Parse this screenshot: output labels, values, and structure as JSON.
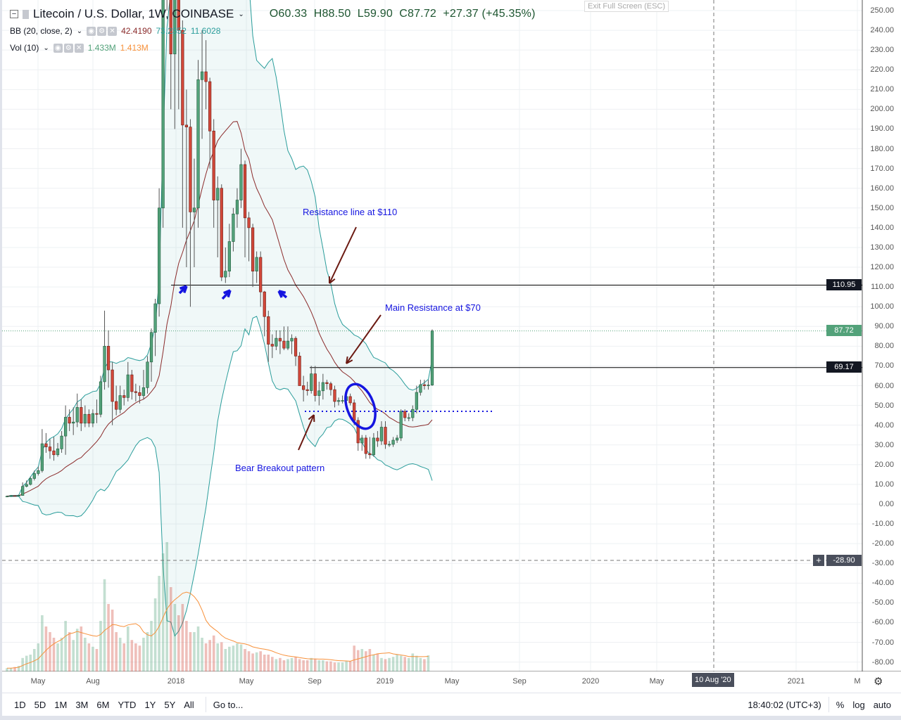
{
  "header": {
    "symbol": "Litecoin / U.S. Dollar, 1W, COINBASE",
    "open": "O60.33",
    "high": "H88.50",
    "low": "L59.90",
    "close": "C87.72",
    "change": "+27.37 (+45.35%)",
    "exit_fullscreen": "Exit Full Screen (ESC)"
  },
  "indicators": {
    "bb": {
      "label": "BB (20, close, 2)",
      "basis": "42.4190",
      "upper": "73.2352",
      "lower": "11.6028"
    },
    "vol": {
      "label": "Vol (10)",
      "value": "1.433M",
      "ma": "1.413M"
    }
  },
  "annotations": {
    "resistance110": "Resistance line at $110",
    "resistance70": "Main Resistance at $70",
    "bear_breakout": "Bear Breakout pattern"
  },
  "price_badges": {
    "level_110": "110.95",
    "last": "87.72",
    "level_69": "69.17",
    "crosshair": "-28.90"
  },
  "time_axis": {
    "labels": [
      "May",
      "Aug",
      "2018",
      "May",
      "Sep",
      "2019",
      "May",
      "Sep",
      "2020",
      "May",
      "2021",
      "M"
    ],
    "crosshair_date": "10 Aug '20"
  },
  "toolbar": {
    "ranges": [
      "1D",
      "5D",
      "1M",
      "3M",
      "6M",
      "YTD",
      "1Y",
      "5Y",
      "All"
    ],
    "goto": "Go to...",
    "clock": "18:40:02 (UTC+3)",
    "percent": "%",
    "log": "log",
    "auto": "auto"
  },
  "colors": {
    "up": "#53a27a",
    "down": "#d2483a",
    "band": "#2a9d9b",
    "basis": "#8b2b2b",
    "annotation": "#1515e0",
    "arrow": "#6b1a12",
    "vol_ma": "#f7913b"
  },
  "chart_data": {
    "type": "candlestick",
    "interval": "1W",
    "y_ticks": [
      "250.00",
      "240.00",
      "230.00",
      "220.00",
      "210.00",
      "200.00",
      "190.00",
      "180.00",
      "170.00",
      "160.00",
      "150.00",
      "140.00",
      "130.00",
      "120.00",
      "110.00",
      "100.00",
      "90.00",
      "80.00",
      "70.00",
      "60.00",
      "50.00",
      "40.00",
      "30.00",
      "20.00",
      "10.00",
      "0.00",
      "-10.00",
      "-20.00",
      "-30.00",
      "-40.00",
      "-50.00",
      "-60.00",
      "-70.00",
      "-80.00"
    ],
    "ylim": [
      -80,
      250
    ],
    "grid": true,
    "horizontal_levels": [
      110.95,
      69.17
    ],
    "breakout_level": 47,
    "candles": [
      [
        3.9,
        4.3,
        3.7,
        4.0
      ],
      [
        4.0,
        4.5,
        3.9,
        4.3
      ],
      [
        4.3,
        4.5,
        4.0,
        4.2
      ],
      [
        4.2,
        4.8,
        4.1,
        4.4
      ],
      [
        4.4,
        11,
        4.3,
        9
      ],
      [
        9,
        12,
        8.5,
        10
      ],
      [
        10,
        14,
        9.5,
        13
      ],
      [
        13,
        17,
        12,
        15.5
      ],
      [
        15.5,
        19,
        14.5,
        17
      ],
      [
        17,
        38,
        16,
        30.6
      ],
      [
        30.6,
        36,
        26,
        29
      ],
      [
        29,
        33,
        23,
        27
      ],
      [
        27,
        34,
        22,
        25
      ],
      [
        25,
        31,
        24,
        28
      ],
      [
        28,
        37,
        26,
        34.5
      ],
      [
        34.5,
        50,
        25,
        44
      ],
      [
        44,
        48,
        37,
        41
      ],
      [
        41,
        49,
        35,
        41.6
      ],
      [
        41.6,
        56,
        39,
        49
      ],
      [
        49,
        53,
        37,
        41
      ],
      [
        41,
        50,
        39,
        45.5
      ],
      [
        45.5,
        48,
        39,
        41
      ],
      [
        41,
        48,
        39,
        45.9
      ],
      [
        45.9,
        53,
        41,
        45.5
      ],
      [
        45.5,
        65,
        44,
        62
      ],
      [
        62,
        98,
        58,
        80
      ],
      [
        80,
        88,
        59,
        68
      ],
      [
        68,
        72,
        40,
        52
      ],
      [
        52,
        60,
        45,
        48
      ],
      [
        48,
        60,
        46,
        55
      ],
      [
        55,
        58,
        50,
        54
      ],
      [
        54,
        72,
        52,
        65.5
      ],
      [
        65.5,
        68,
        53,
        57
      ],
      [
        57,
        61,
        52,
        56.5
      ],
      [
        56.5,
        60,
        51,
        55
      ],
      [
        55,
        68,
        53,
        59
      ],
      [
        59,
        75,
        56,
        72
      ],
      [
        72,
        89,
        62,
        87
      ],
      [
        87,
        104,
        75,
        101.5
      ],
      [
        101.5,
        160,
        95,
        150
      ],
      [
        150,
        330,
        140,
        290
      ],
      [
        290,
        370,
        250,
        320
      ],
      [
        320,
        330,
        200,
        228
      ],
      [
        228,
        310,
        190,
        300
      ],
      [
        300,
        305,
        200,
        240
      ],
      [
        240,
        245,
        140,
        192
      ],
      [
        192,
        210,
        120,
        191
      ],
      [
        191,
        195,
        100,
        148
      ],
      [
        148,
        175,
        120,
        150
      ],
      [
        150,
        225,
        140,
        215
      ],
      [
        215,
        240,
        185,
        219
      ],
      [
        219,
        235,
        200,
        214
      ],
      [
        214,
        216,
        170,
        189
      ],
      [
        189,
        195,
        140,
        154
      ],
      [
        154,
        166,
        125,
        160
      ],
      [
        160,
        162,
        113,
        115
      ],
      [
        115,
        130,
        112,
        118
      ],
      [
        118,
        142,
        115,
        133
      ],
      [
        133,
        150,
        128,
        147
      ],
      [
        147,
        160,
        140,
        154
      ],
      [
        154,
        180,
        150,
        172
      ],
      [
        172,
        174,
        125,
        145
      ],
      [
        145,
        148,
        123,
        140
      ],
      [
        140,
        142,
        110,
        118
      ],
      [
        118,
        128,
        112,
        125
      ],
      [
        125,
        128,
        100,
        107.5
      ],
      [
        107.5,
        108,
        85,
        95
      ],
      [
        95,
        98,
        72,
        81
      ],
      [
        81,
        86,
        74,
        80
      ],
      [
        80,
        88,
        78,
        84
      ],
      [
        84,
        88,
        76,
        82.6
      ],
      [
        82.6,
        90,
        78,
        79
      ],
      [
        79,
        90,
        78,
        82.6
      ],
      [
        82.6,
        86,
        76,
        84
      ],
      [
        84,
        85,
        70,
        75
      ],
      [
        75,
        77,
        60,
        60
      ],
      [
        60,
        65,
        52,
        58
      ],
      [
        58,
        62,
        55,
        57.5
      ],
      [
        57.5,
        70,
        56,
        66
      ],
      [
        66,
        70,
        52,
        55
      ],
      [
        55,
        62,
        50,
        57.4
      ],
      [
        57.4,
        66,
        53,
        61.6
      ],
      [
        61.6,
        63,
        58,
        61
      ],
      [
        61,
        62,
        55,
        58
      ],
      [
        58,
        60,
        49,
        52
      ],
      [
        52,
        54,
        50,
        52.5
      ],
      [
        52.5,
        55,
        51,
        52.5
      ],
      [
        52.5,
        57,
        50,
        54.5
      ],
      [
        54.5,
        56,
        50,
        51.3
      ],
      [
        51.3,
        53,
        40,
        42.4
      ],
      [
        42.4,
        44,
        27,
        31
      ],
      [
        31,
        35,
        27,
        33.5
      ],
      [
        33.5,
        35,
        23,
        25.6
      ],
      [
        25.6,
        34,
        23,
        25
      ],
      [
        25,
        36,
        24,
        33.5
      ],
      [
        33.5,
        37,
        29,
        32
      ],
      [
        32,
        42,
        30,
        39
      ],
      [
        39,
        42,
        28,
        30.3
      ],
      [
        30.3,
        32,
        29,
        30.3
      ],
      [
        30.3,
        34,
        29,
        32.4
      ],
      [
        32.4,
        35,
        31,
        33.5
      ],
      [
        33.5,
        48,
        32,
        47
      ],
      [
        47,
        48,
        42,
        43.8
      ],
      [
        43.8,
        46,
        42,
        43.8
      ],
      [
        43.8,
        50,
        42,
        48
      ],
      [
        48,
        60,
        46,
        56.6
      ],
      [
        56.6,
        63,
        55,
        60.5
      ],
      [
        60.5,
        63,
        58,
        60
      ],
      [
        60,
        63,
        58,
        60.3
      ],
      [
        60.33,
        88.5,
        59.9,
        87.72
      ]
    ],
    "volume_millions": [
      0.3,
      0.3,
      0.4,
      0.5,
      1.2,
      1.4,
      1.5,
      2.0,
      2.5,
      5.0,
      4.0,
      3.5,
      3.0,
      2.5,
      3.0,
      4.5,
      3.5,
      2.8,
      3.8,
      4.0,
      3.0,
      2.5,
      2.2,
      2.0,
      4.5,
      8.2,
      6.0,
      5.5,
      3.5,
      3.0,
      2.5,
      4.0,
      2.8,
      2.5,
      2.3,
      3.0,
      3.5,
      4.5,
      6.5,
      8.5,
      10.5,
      11.5,
      7.5,
      6.0,
      5.0,
      6.0,
      4.5,
      3.5,
      3.5,
      4.0,
      3.0,
      2.5,
      2.8,
      3.2,
      2.5,
      2.6,
      2.0,
      2.2,
      2.3,
      2.5,
      2.4,
      2.0,
      1.8,
      1.6,
      1.7,
      1.8,
      1.5,
      1.5,
      1.3,
      1.1,
      1.2,
      1.0,
      1.1,
      1.2,
      1.3,
      1.1,
      1.0,
      1.0,
      1.2,
      1.1,
      1.0,
      1.0,
      0.9,
      0.9,
      0.8,
      0.8,
      0.8,
      0.9,
      0.9,
      2.3,
      1.9,
      2.0,
      1.8,
      2.0,
      1.5,
      1.6,
      1.2,
      1.1,
      1.2,
      1.3,
      1.5,
      1.4,
      1.3,
      1.2,
      1.6,
      1.4,
      1.2,
      1.1,
      1.433
    ]
  }
}
